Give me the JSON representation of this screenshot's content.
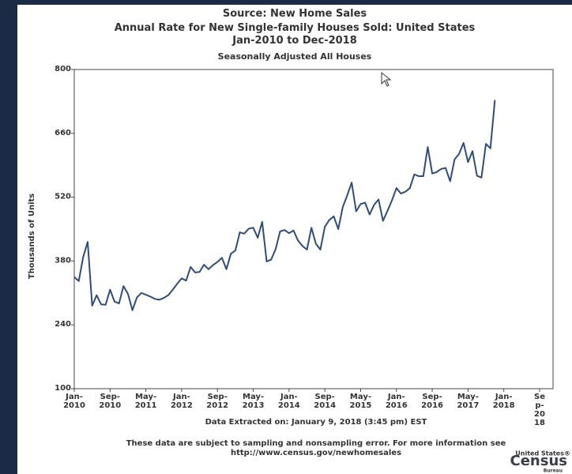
{
  "chart_data": {
    "type": "line",
    "title": [
      "Source: New Home Sales",
      "Annual Rate for New Single-family Houses Sold: United States",
      "Jan-2010 to Dec-2018"
    ],
    "subtitle": "Seasonally Adjusted All Houses",
    "y_label": "Thousands of Units",
    "x_label": "Data Extracted on: January 9, 2018 (3:45 pm) EST",
    "footnote": [
      "These data are subject to sampling and nonsampling error. For more information see",
      "http://www.census.gov/newhomesales"
    ],
    "logo": [
      "United States®",
      "Census",
      "Bureau"
    ],
    "color": "#2e4d7b",
    "x": [
      0,
      1,
      2,
      3,
      4,
      5,
      6,
      7,
      8,
      9,
      10,
      11,
      12,
      13,
      14,
      15,
      16,
      17,
      18,
      19,
      20,
      21,
      22,
      23,
      24,
      25,
      26,
      27,
      28,
      29,
      30,
      31,
      32,
      33,
      34,
      35,
      36,
      37,
      38,
      39,
      40,
      41,
      42,
      43,
      44,
      45,
      46,
      47,
      48,
      49,
      50,
      51,
      52,
      53,
      54,
      55,
      56,
      57,
      58,
      59,
      60,
      61,
      62,
      63,
      64,
      65,
      66,
      67,
      68,
      69,
      70,
      71,
      72,
      73,
      74,
      75,
      76,
      77,
      78,
      79,
      80,
      81,
      82,
      83,
      84,
      85,
      86,
      87,
      88,
      89,
      90,
      91,
      92,
      93,
      94
    ],
    "values": [
      345,
      336,
      389,
      422,
      282,
      305,
      285,
      284,
      317,
      291,
      287,
      325,
      308,
      272,
      300,
      310,
      306,
      302,
      297,
      295,
      299,
      305,
      317,
      330,
      342,
      337,
      367,
      355,
      356,
      372,
      362,
      371,
      378,
      387,
      362,
      396,
      403,
      443,
      440,
      451,
      453,
      431,
      466,
      379,
      383,
      406,
      445,
      448,
      441,
      447,
      425,
      413,
      405,
      453,
      418,
      405,
      455,
      470,
      478,
      450,
      498,
      524,
      552,
      489,
      505,
      508,
      482,
      503,
      515,
      468,
      490,
      513,
      540,
      528,
      532,
      540,
      570,
      566,
      566,
      630,
      572,
      575,
      582,
      584,
      555,
      603,
      615,
      639,
      597,
      621,
      567,
      563,
      637,
      627,
      733
    ],
    "xlim": [
      0,
      107
    ],
    "xticks": [
      {
        "value": 0,
        "label": "Jan-\n2010"
      },
      {
        "value": 8,
        "label": "Sep-\n2010"
      },
      {
        "value": 16,
        "label": "May-\n2011"
      },
      {
        "value": 24,
        "label": "Jan-\n2012"
      },
      {
        "value": 32,
        "label": "Sep-\n2012"
      },
      {
        "value": 40,
        "label": "May-\n2013"
      },
      {
        "value": 48,
        "label": "Jan-\n2014"
      },
      {
        "value": 56,
        "label": "Sep-\n2014"
      },
      {
        "value": 64,
        "label": "May-\n2015"
      },
      {
        "value": 72,
        "label": "Jan-\n2016"
      },
      {
        "value": 80,
        "label": "Sep-\n2016"
      },
      {
        "value": 88,
        "label": "May-\n2017"
      },
      {
        "value": 96,
        "label": "Jan-\n2018"
      },
      {
        "value": 104,
        "label": "Se\np-\n20\n18"
      }
    ],
    "ylim": [
      100,
      800
    ],
    "yticks": [
      100,
      240,
      380,
      520,
      660,
      800
    ]
  }
}
